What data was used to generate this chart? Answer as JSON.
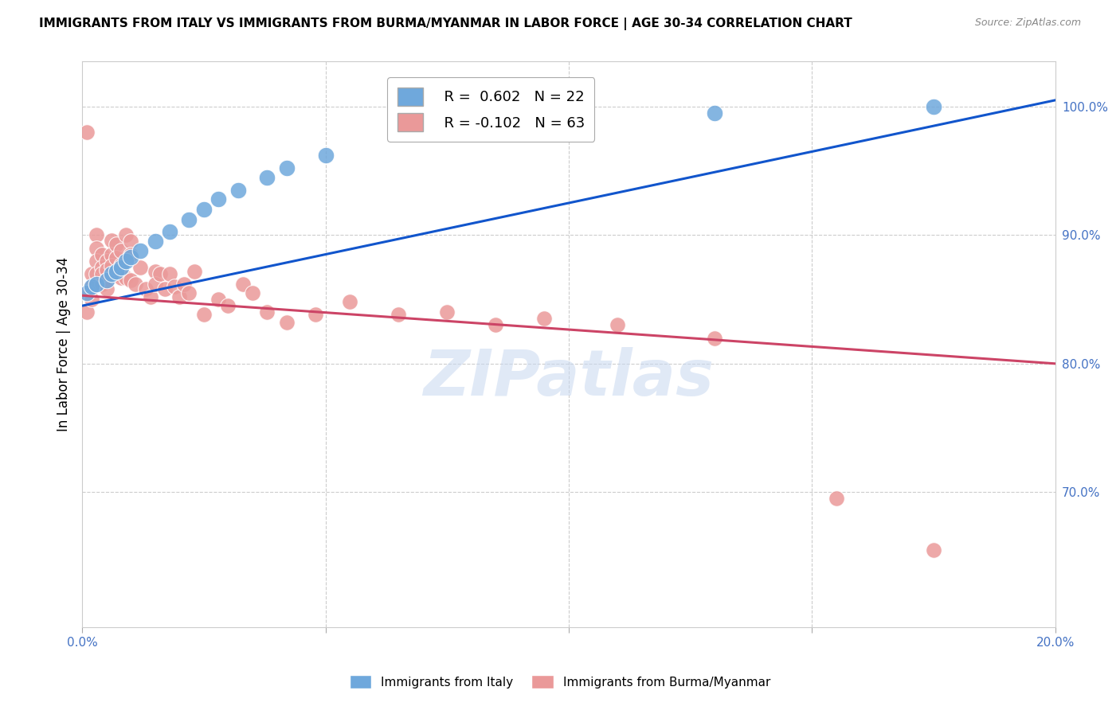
{
  "title": "IMMIGRANTS FROM ITALY VS IMMIGRANTS FROM BURMA/MYANMAR IN LABOR FORCE | AGE 30-34 CORRELATION CHART",
  "source": "Source: ZipAtlas.com",
  "ylabel": "In Labor Force | Age 30-34",
  "ytick_labels": [
    "100.0%",
    "90.0%",
    "80.0%",
    "70.0%"
  ],
  "ytick_values": [
    1.0,
    0.9,
    0.8,
    0.7
  ],
  "xlim": [
    0.0,
    0.2
  ],
  "ylim": [
    0.595,
    1.035
  ],
  "italy_color": "#6fa8dc",
  "burma_color": "#ea9999",
  "italy_line_color": "#1155cc",
  "burma_line_color": "#cc4466",
  "watermark": "ZIPatlas",
  "italy_scatter_x": [
    0.001,
    0.002,
    0.003,
    0.005,
    0.006,
    0.007,
    0.008,
    0.009,
    0.01,
    0.012,
    0.015,
    0.018,
    0.022,
    0.025,
    0.028,
    0.032,
    0.038,
    0.042,
    0.05,
    0.09,
    0.13,
    0.175
  ],
  "italy_scatter_y": [
    0.855,
    0.86,
    0.862,
    0.865,
    0.87,
    0.872,
    0.875,
    0.88,
    0.883,
    0.888,
    0.895,
    0.903,
    0.912,
    0.92,
    0.928,
    0.935,
    0.945,
    0.952,
    0.962,
    0.99,
    0.995,
    1.0
  ],
  "italy_line_x0": 0.0,
  "italy_line_y0": 0.845,
  "italy_line_x1": 0.2,
  "italy_line_y1": 1.005,
  "burma_line_x0": 0.0,
  "burma_line_y0": 0.853,
  "burma_line_x1": 0.2,
  "burma_line_y1": 0.8,
  "burma_scatter_x": [
    0.001,
    0.001,
    0.001,
    0.002,
    0.002,
    0.002,
    0.003,
    0.003,
    0.003,
    0.003,
    0.004,
    0.004,
    0.004,
    0.004,
    0.005,
    0.005,
    0.005,
    0.005,
    0.006,
    0.006,
    0.006,
    0.007,
    0.007,
    0.007,
    0.008,
    0.008,
    0.008,
    0.009,
    0.009,
    0.01,
    0.01,
    0.01,
    0.011,
    0.012,
    0.013,
    0.014,
    0.015,
    0.015,
    0.016,
    0.017,
    0.018,
    0.019,
    0.02,
    0.021,
    0.022,
    0.023,
    0.025,
    0.028,
    0.03,
    0.033,
    0.035,
    0.038,
    0.042,
    0.048,
    0.055,
    0.065,
    0.075,
    0.085,
    0.095,
    0.11,
    0.13,
    0.155,
    0.175
  ],
  "burma_scatter_y": [
    0.98,
    0.855,
    0.84,
    0.87,
    0.86,
    0.85,
    0.9,
    0.89,
    0.88,
    0.87,
    0.885,
    0.875,
    0.87,
    0.862,
    0.88,
    0.873,
    0.865,
    0.858,
    0.896,
    0.885,
    0.876,
    0.893,
    0.882,
    0.87,
    0.888,
    0.877,
    0.867,
    0.9,
    0.867,
    0.895,
    0.885,
    0.865,
    0.862,
    0.875,
    0.858,
    0.852,
    0.872,
    0.862,
    0.87,
    0.858,
    0.87,
    0.86,
    0.852,
    0.862,
    0.855,
    0.872,
    0.838,
    0.85,
    0.845,
    0.862,
    0.855,
    0.84,
    0.832,
    0.838,
    0.848,
    0.838,
    0.84,
    0.83,
    0.835,
    0.83,
    0.82,
    0.695,
    0.655
  ]
}
